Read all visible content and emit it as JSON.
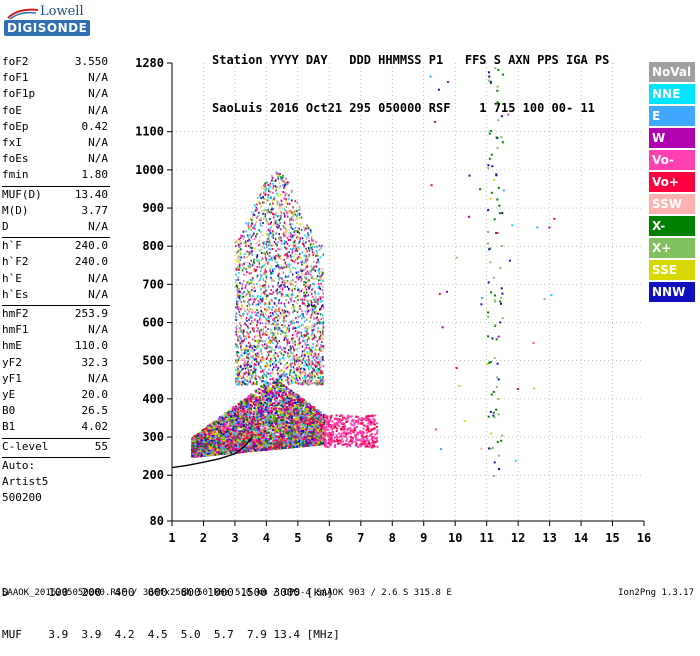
{
  "logo": {
    "line1": "Lowell",
    "line2": "DIGISONDE"
  },
  "header": {
    "line1": "Station YYYY DAY   DDD HHMMSS P1   FFS S AXN PPS IGA PS",
    "line2": "SaoLuis 2016 Oct21 295 050000 RSF    1 715 100 00- 11"
  },
  "params": {
    "group1": [
      {
        "name": "foF2",
        "value": "3.550"
      },
      {
        "name": "foF1",
        "value": "N/A"
      },
      {
        "name": "foF1p",
        "value": "N/A"
      },
      {
        "name": "foE",
        "value": "N/A"
      },
      {
        "name": "foEp",
        "value": "0.42"
      },
      {
        "name": "fxI",
        "value": "N/A"
      },
      {
        "name": "foEs",
        "value": "N/A"
      },
      {
        "name": "fmin",
        "value": "1.80"
      }
    ],
    "group2": [
      {
        "name": "MUF(D)",
        "value": "13.40"
      },
      {
        "name": "M(D)",
        "value": "3.77"
      },
      {
        "name": "D",
        "value": "N/A"
      }
    ],
    "group3": [
      {
        "name": "h`F",
        "value": "240.0"
      },
      {
        "name": "h`F2",
        "value": "240.0"
      },
      {
        "name": "h`E",
        "value": "N/A"
      },
      {
        "name": "h`Es",
        "value": "N/A"
      }
    ],
    "group4": [
      {
        "name": "hmF2",
        "value": "253.9"
      },
      {
        "name": "hmF1",
        "value": "N/A"
      },
      {
        "name": "hmE",
        "value": "110.0"
      },
      {
        "name": "yF2",
        "value": "32.3"
      },
      {
        "name": "yF1",
        "value": "N/A"
      },
      {
        "name": "yE",
        "value": "20.0"
      },
      {
        "name": "B0",
        "value": "26.5"
      },
      {
        "name": "B1",
        "value": "4.02"
      }
    ],
    "clevel": {
      "name": "C-level",
      "value": "55"
    },
    "auto": [
      "Auto:",
      "Artist5",
      "500200"
    ]
  },
  "legend": [
    {
      "label": "NoVal",
      "color": "#a0a0a0"
    },
    {
      "label": "NNE",
      "color": "#00e5ff"
    },
    {
      "label": "E",
      "color": "#40a8ff"
    },
    {
      "label": "W",
      "color": "#b000b0"
    },
    {
      "label": "Vo-",
      "color": "#ff40b0"
    },
    {
      "label": "Vo+",
      "color": "#ff0040"
    },
    {
      "label": "SSW",
      "color": "#ffb0b0"
    },
    {
      "label": "X-",
      "color": "#008000"
    },
    {
      "label": "X+",
      "color": "#80c060"
    },
    {
      "label": "SSE",
      "color": "#d8d800"
    },
    {
      "label": "NNW",
      "color": "#1010c0"
    }
  ],
  "bottom": {
    "line1": "D      100  200  400  600  800 1000 1500 3000 [km]",
    "line2": "MUF    3.9  3.9  4.2  4.5  5.0  5.7  7.9 13.4 [MHz]"
  },
  "footer": {
    "left": "SAAOK_2016295050000.RSF / 300fx256h 50 kHz 5.0 km / DPS-4 SAAOK 903 / 2.6 S 315.8 E",
    "right": "Ion2Png 1.3.17"
  },
  "chart_data": {
    "type": "scatter",
    "xlim": [
      1,
      16
    ],
    "ylim": [
      80,
      1280
    ],
    "x_ticks": [
      1,
      2,
      3,
      4,
      5,
      6,
      7,
      8,
      9,
      10,
      11,
      12,
      13,
      14,
      15,
      16
    ],
    "y_ticks": [
      80,
      200,
      300,
      400,
      500,
      600,
      700,
      800,
      900,
      1000,
      1100,
      1280
    ],
    "grid": true,
    "trace_curve": {
      "x": [
        1.0,
        1.5,
        2.0,
        2.5,
        3.0,
        3.3,
        3.55
      ],
      "y": [
        220,
        226,
        234,
        243,
        256,
        275,
        300
      ]
    },
    "clusters": [
      {
        "x_range": [
          1.6,
          5.8
        ],
        "y_range": [
          260,
          440
        ],
        "density": 0.9
      },
      {
        "x_range": [
          3.0,
          5.8
        ],
        "y_range": [
          440,
          1000
        ],
        "density": 0.35
      },
      {
        "x_range": [
          5.8,
          7.5
        ],
        "y_range": [
          275,
          360
        ],
        "density": 0.6
      },
      {
        "x_range": [
          11.0,
          11.5
        ],
        "y_range": [
          180,
          1280
        ],
        "density": 0.15
      }
    ]
  }
}
